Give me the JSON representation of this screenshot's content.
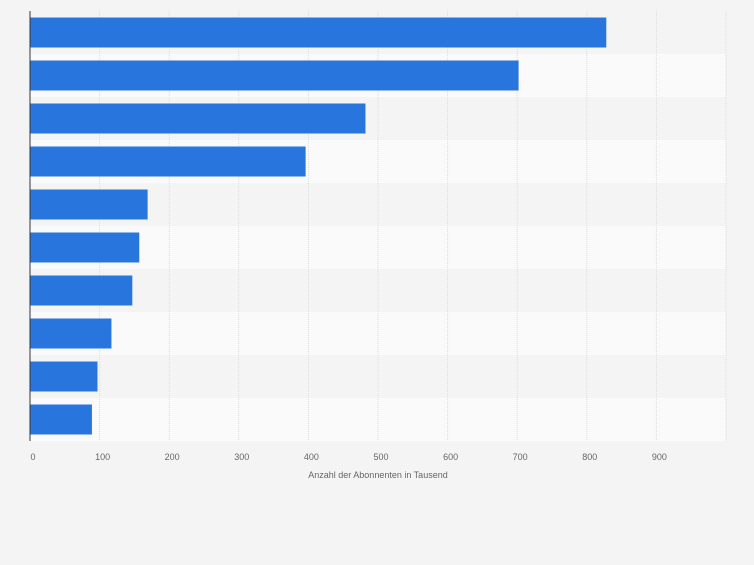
{
  "chart_data": {
    "type": "bar",
    "orientation": "horizontal",
    "categories": [
      "",
      "",
      "",
      "",
      "",
      "",
      "",
      "",
      "",
      ""
    ],
    "values": [
      828,
      702,
      482,
      396,
      169,
      157,
      147,
      117,
      97,
      89
    ],
    "xlabel": "Anzahl der Abonnenten in Tausend",
    "ylabel": "",
    "xlim": [
      0,
      1000
    ],
    "xticks": [
      0,
      100,
      200,
      300,
      400,
      500,
      600,
      700,
      800,
      900
    ],
    "xtick_labels": [
      "0",
      "100",
      "200",
      "300",
      "400",
      "500",
      "600",
      "700",
      "800",
      "900"
    ],
    "grid": true,
    "legend": "none",
    "bar_color": "#2876dd",
    "band_colors": [
      "#f4f4f4",
      "#fafafa"
    ],
    "gridline_color": "#dcdcdc",
    "axis_color": "#333333",
    "text_color": "#666666"
  }
}
